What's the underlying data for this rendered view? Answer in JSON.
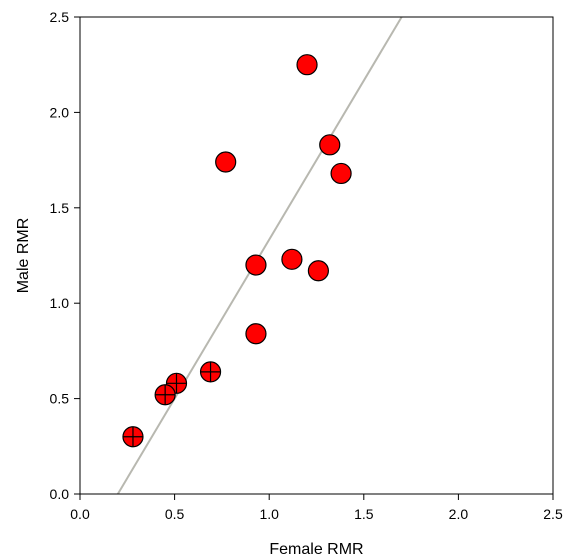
{
  "chart_data": {
    "type": "scatter",
    "title": "",
    "xlabel": "Female RMR",
    "ylabel": "Male RMR",
    "xlim": [
      0.0,
      2.5
    ],
    "ylim": [
      0.0,
      2.5
    ],
    "xticks": [
      "0.0",
      "0.5",
      "1.0",
      "1.5",
      "2.0",
      "2.5"
    ],
    "yticks": [
      "0.0",
      "0.5",
      "1.0",
      "1.5",
      "2.0",
      "2.5"
    ],
    "grid": false,
    "legend": "none",
    "marker_color": "#ff0000",
    "marker_edge_color": "#000000",
    "line_color": "#b8b8b0",
    "series": [
      {
        "name": "",
        "marker": "circle",
        "points": [
          {
            "x": 1.2,
            "y": 2.25
          },
          {
            "x": 1.32,
            "y": 1.83
          },
          {
            "x": 0.77,
            "y": 1.74
          },
          {
            "x": 1.38,
            "y": 1.68
          },
          {
            "x": 0.93,
            "y": 1.2
          },
          {
            "x": 1.12,
            "y": 1.23
          },
          {
            "x": 1.26,
            "y": 1.17
          },
          {
            "x": 0.93,
            "y": 0.84
          }
        ]
      },
      {
        "name": "",
        "marker": "circle-cross",
        "points": [
          {
            "x": 0.69,
            "y": 0.64
          },
          {
            "x": 0.51,
            "y": 0.58
          },
          {
            "x": 0.45,
            "y": 0.52
          },
          {
            "x": 0.28,
            "y": 0.3
          }
        ]
      }
    ],
    "fit_line": {
      "x": [
        0.2,
        1.7
      ],
      "y": [
        0.0,
        2.5
      ]
    }
  }
}
